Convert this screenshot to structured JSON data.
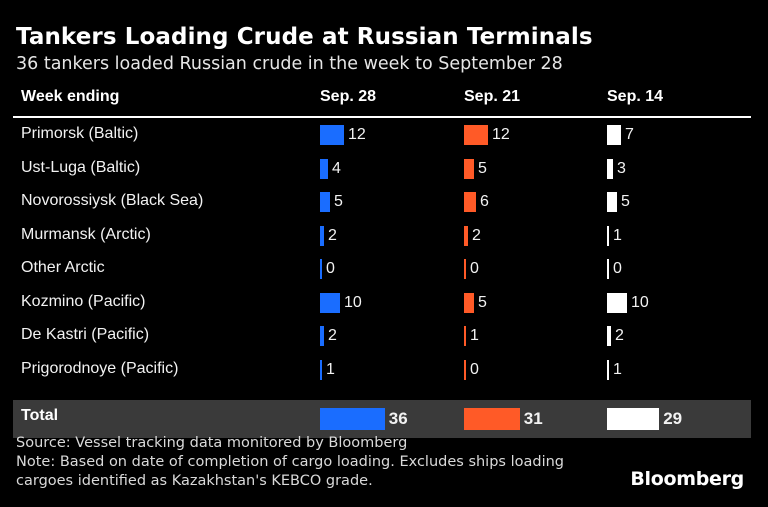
{
  "title": "Tankers Loading Crude at Russian Terminals",
  "subtitle": "36 tankers loaded Russian crude in the week to September 28",
  "source_line": "Source: Vessel tracking data monitored by Bloomberg",
  "note_line1": "Note: Based on date of completion of cargo loading. Excludes ships loading",
  "note_line2": "cargoes identified as Kazakhstan's KEBCO grade.",
  "brand": "Bloomberg",
  "colors": {
    "sep28": "#1a6dff",
    "sep21": "#ff5a27",
    "sep14": "#ffffff",
    "total_band": "#3a3a3a"
  },
  "chart_data": {
    "type": "table",
    "title": "Tankers Loading Crude at Russian Terminals",
    "subtitle": "36 tankers loaded Russian crude in the week to September 28",
    "row_header": "Week ending",
    "columns": [
      "Sep. 28",
      "Sep. 21",
      "Sep. 14"
    ],
    "rows": [
      {
        "label": "Primorsk (Baltic)",
        "values": [
          12,
          12,
          7
        ]
      },
      {
        "label": "Ust-Luga (Baltic)",
        "values": [
          4,
          5,
          3
        ]
      },
      {
        "label": "Novorossiysk (Black Sea)",
        "values": [
          5,
          6,
          5
        ]
      },
      {
        "label": "Murmansk (Arctic)",
        "values": [
          2,
          2,
          1
        ]
      },
      {
        "label": "Other Arctic",
        "values": [
          0,
          0,
          0
        ]
      },
      {
        "label": "Kozmino (Pacific)",
        "values": [
          10,
          5,
          10
        ]
      },
      {
        "label": "De Kastri (Pacific)",
        "values": [
          2,
          1,
          2
        ]
      },
      {
        "label": "Prigorodnoye (Pacific)",
        "values": [
          1,
          0,
          1
        ]
      }
    ],
    "total": {
      "label": "Total",
      "values": [
        36,
        31,
        29
      ]
    }
  }
}
